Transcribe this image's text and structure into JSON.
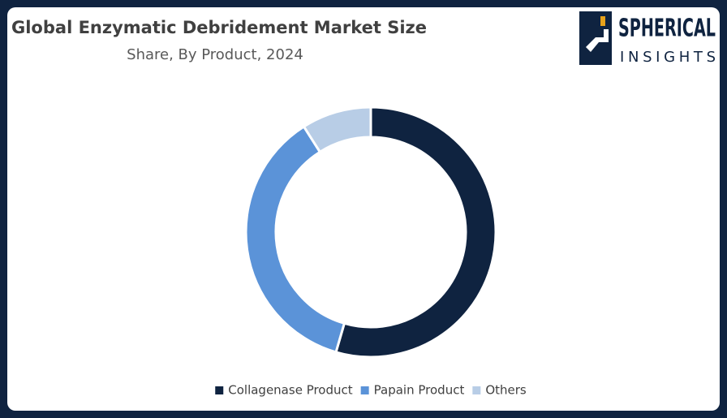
{
  "chart_data": {
    "type": "donut",
    "title": "Global Enzymatic Debridement Market Size",
    "subtitle": "Share, By Product, 2024",
    "categories": [
      "Collagenase Product",
      "Papain Product",
      "Others"
    ],
    "values": [
      54.5,
      36.5,
      9
    ],
    "colors": [
      "#0f2340",
      "#5b93d8",
      "#b8cde6"
    ],
    "legend": "bottom"
  },
  "logo": {
    "line1": "SPHERICAL",
    "line2": "INSIGHTS"
  }
}
